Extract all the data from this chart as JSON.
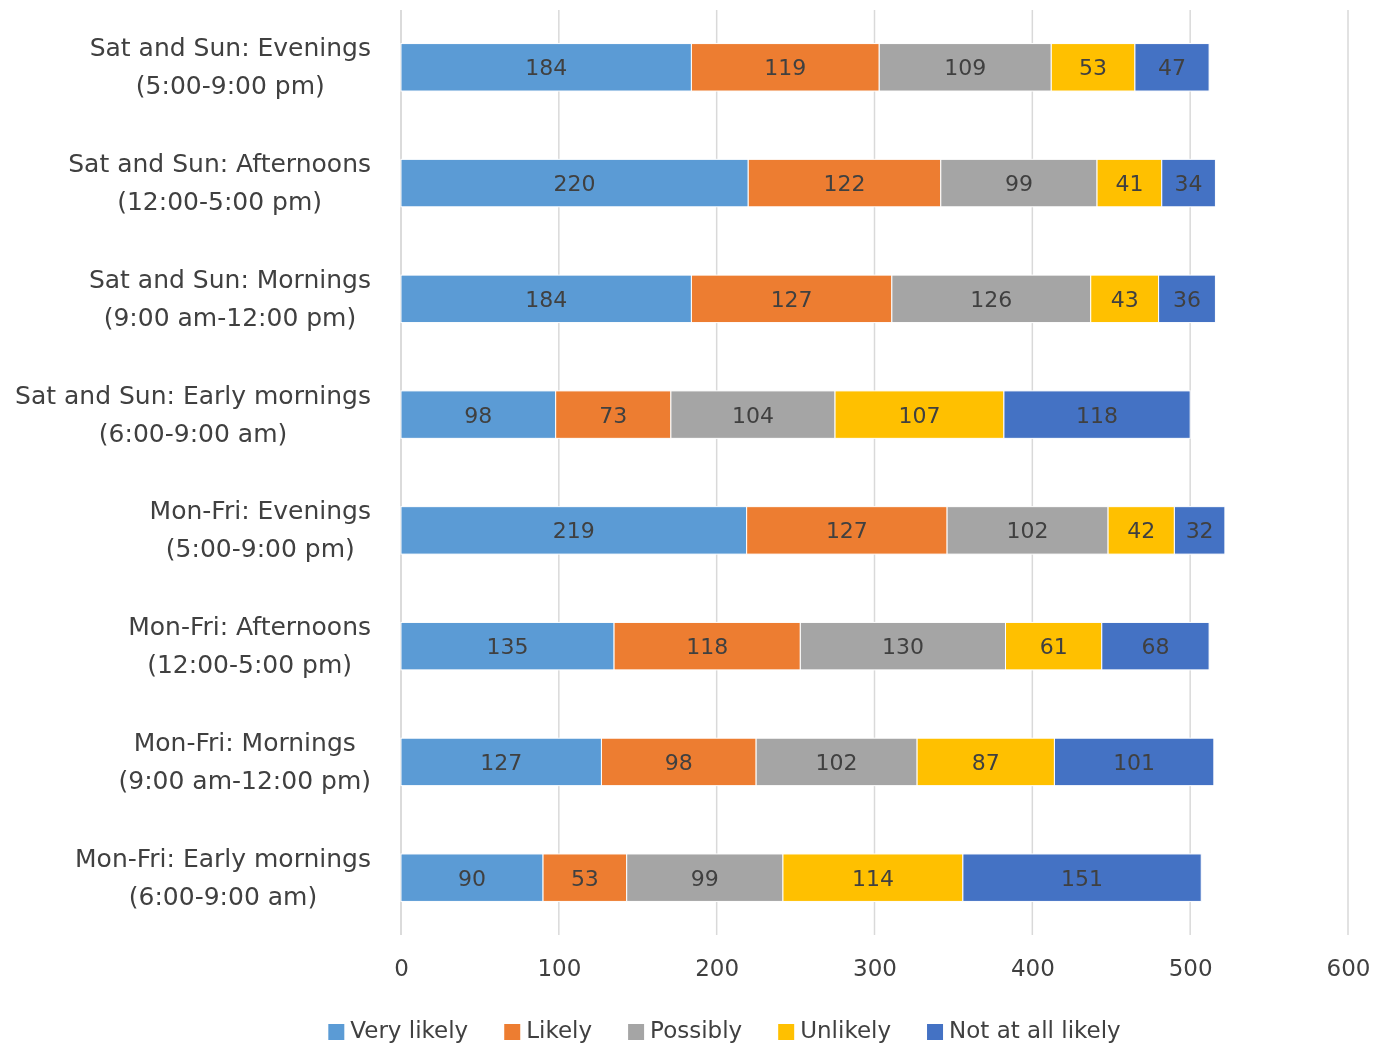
{
  "chart_data": {
    "type": "bar",
    "orientation": "horizontal",
    "stacked": true,
    "categories": [
      "Sat and Sun: Evenings (5:00-9:00 pm)",
      "Sat and Sun: Afternoons (12:00-5:00 pm)",
      "Sat and Sun: Mornings (9:00 am-12:00 pm)",
      "Sat and Sun: Early mornings (6:00-9:00 am)",
      "Mon-Fri: Evenings (5:00-9:00 pm)",
      "Mon-Fri: Afternoons (12:00-5:00 pm)",
      "Mon-Fri: Mornings (9:00 am-12:00 pm)",
      "Mon-Fri: Early mornings (6:00-9:00 am)"
    ],
    "series": [
      {
        "name": "Very likely",
        "color": "#5b9bd5",
        "values": [
          184,
          220,
          184,
          98,
          219,
          135,
          127,
          90
        ]
      },
      {
        "name": "Likely",
        "color": "#ed7d31",
        "values": [
          119,
          122,
          127,
          73,
          127,
          118,
          98,
          53
        ]
      },
      {
        "name": "Possibly",
        "color": "#a5a5a5",
        "values": [
          109,
          99,
          126,
          104,
          102,
          130,
          102,
          99
        ]
      },
      {
        "name": "Unlikely",
        "color": "#ffc000",
        "values": [
          53,
          41,
          43,
          107,
          42,
          61,
          87,
          114
        ]
      },
      {
        "name": "Not at all likely",
        "color": "#4472c4",
        "values": [
          47,
          34,
          36,
          118,
          32,
          68,
          101,
          151
        ]
      }
    ],
    "xlim": [
      0,
      600
    ],
    "xticks": [
      0,
      100,
      200,
      300,
      400,
      500,
      600
    ],
    "grid": "x",
    "legend": "bottom",
    "data_labels": true
  }
}
